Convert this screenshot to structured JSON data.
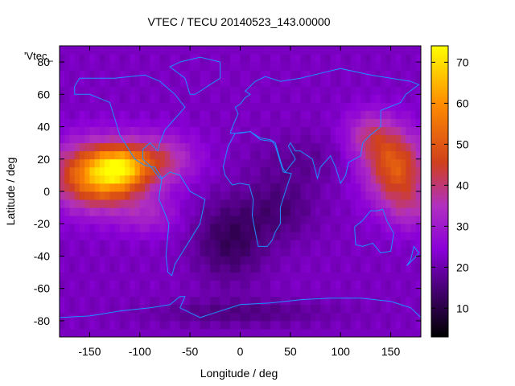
{
  "chart_data": {
    "type": "heatmap",
    "title": "VTEC / TECU 20140523_143.00000",
    "xlabel": "Longitude / deg",
    "ylabel": "Latitude / deg",
    "legend_key": "'Vtec_",
    "xlim": [
      -180,
      180
    ],
    "ylim": [
      -90,
      90
    ],
    "xticks": [
      -150,
      -100,
      -50,
      0,
      50,
      100,
      150
    ],
    "yticks": [
      -80,
      -60,
      -40,
      -20,
      0,
      20,
      40,
      60,
      80
    ],
    "colorbar": {
      "range": [
        3,
        74
      ],
      "ticks": [
        10,
        20,
        30,
        40,
        50,
        60,
        70
      ]
    },
    "grid_step_deg": 5,
    "blobs": [
      {
        "lon": -140,
        "lat": 10,
        "sx": 45,
        "sy": 20,
        "amp": 40
      },
      {
        "lon": -120,
        "lat": 15,
        "sx": 25,
        "sy": 12,
        "amp": 20
      },
      {
        "lon": -80,
        "lat": 20,
        "sx": 35,
        "sy": 15,
        "amp": 16
      },
      {
        "lon": -90,
        "lat": -15,
        "sx": 30,
        "sy": 12,
        "amp": 8
      },
      {
        "lon": 155,
        "lat": 15,
        "sx": 30,
        "sy": 22,
        "amp": 28
      },
      {
        "lon": 130,
        "lat": 35,
        "sx": 25,
        "sy": 15,
        "amp": 14
      },
      {
        "lon": 170,
        "lat": -10,
        "sx": 25,
        "sy": 15,
        "amp": 10
      },
      {
        "lon": -10,
        "lat": -30,
        "sx": 35,
        "sy": 25,
        "amp": -10
      },
      {
        "lon": 40,
        "lat": -10,
        "sx": 35,
        "sy": 20,
        "amp": -7
      },
      {
        "lon": 60,
        "lat": 20,
        "sx": 45,
        "sy": 15,
        "amp": -4
      },
      {
        "lon": 0,
        "lat": -75,
        "sx": 90,
        "sy": 8,
        "amp": -6
      }
    ],
    "base_value": 22,
    "coastlines_color": "#1e90ff",
    "colors": {
      "low": "#000000",
      "mid_low": "#5a00a0",
      "mid": "#a020f0",
      "mid_high": "#c83c2c",
      "high": "#ff8c00",
      "peak": "#ffff00"
    }
  }
}
